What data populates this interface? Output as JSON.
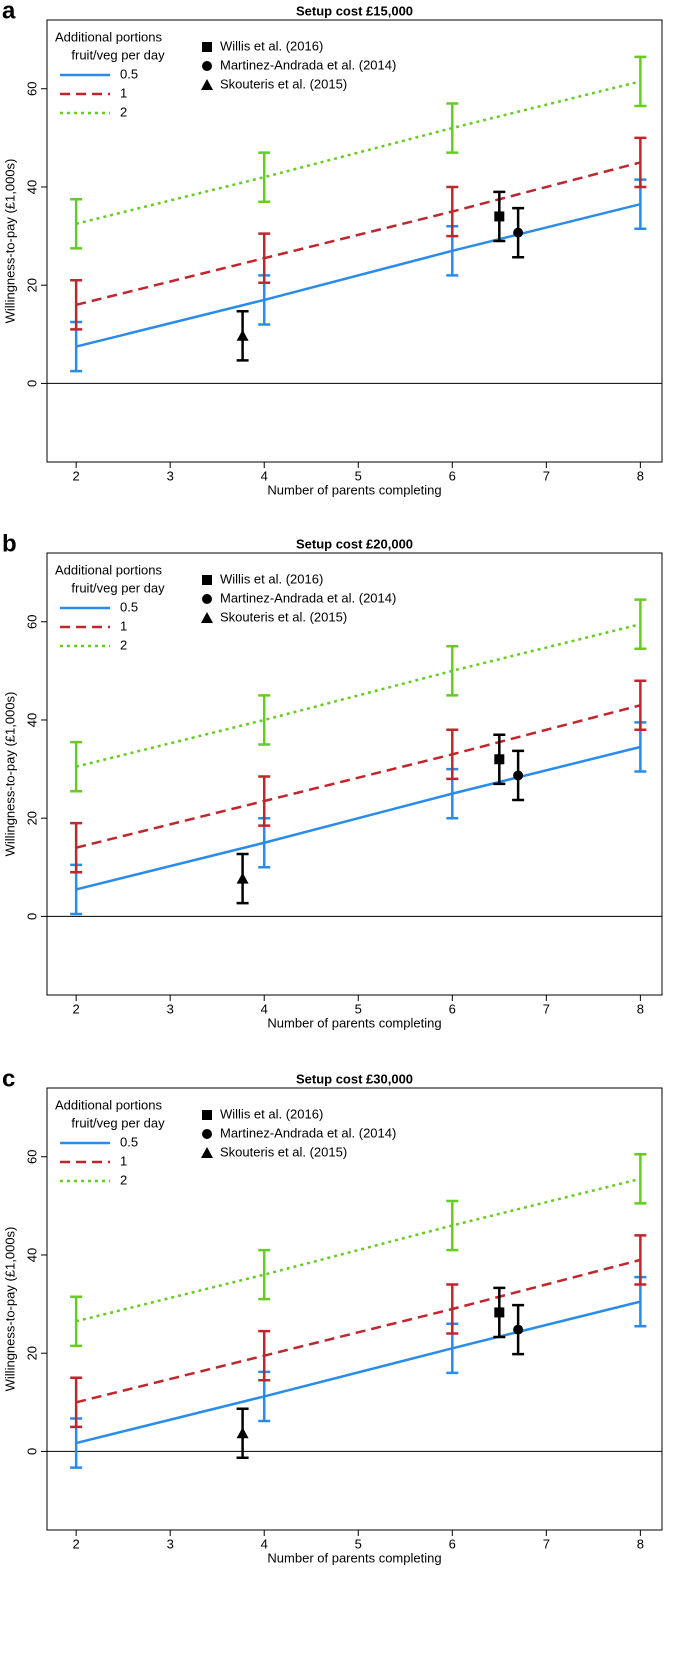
{
  "chart_data": [
    {
      "type": "line",
      "panel_label": "a",
      "title": "Setup cost £15,000",
      "x_label": "Number of parents completing",
      "y_label": "Willingness-to-pay (£1,000s)",
      "legend_title": [
        "Additional portions",
        "fruit/veg per day"
      ],
      "x": [
        2,
        4,
        6,
        8
      ],
      "series": [
        {
          "name": "0.5",
          "color": "#2a8cea",
          "dash": "none",
          "values": [
            7.5,
            17,
            27,
            36.5
          ],
          "errors": [
            5,
            5,
            5,
            5
          ]
        },
        {
          "name": "1",
          "color": "#c0262d",
          "dash": "10,6",
          "values": [
            16,
            25.5,
            35,
            45
          ],
          "errors": [
            5,
            5,
            5,
            5
          ]
        },
        {
          "name": "2",
          "color": "#66cc22",
          "dash": "3,4",
          "values": [
            32.5,
            42,
            52,
            61.5
          ],
          "errors": [
            5,
            5,
            5,
            5
          ]
        }
      ],
      "points": [
        {
          "name": "Willis et al. (2016)",
          "marker": "square",
          "x": 6.5,
          "y": 34,
          "error": 5
        },
        {
          "name": "Martinez-Andrada et al. (2014)",
          "marker": "circle",
          "x": 6.7,
          "y": 30.7,
          "error": 5
        },
        {
          "name": "Skouteris et al. (2015)",
          "marker": "triangle",
          "x": 3.77,
          "y": 9.7,
          "error": 5
        }
      ],
      "hline": 0,
      "xlim": [
        1.69,
        8.23
      ],
      "ylim": [
        -16,
        74
      ],
      "xticks": [
        2,
        3,
        4,
        5,
        6,
        7,
        8
      ],
      "yticks": [
        0,
        20,
        40,
        60
      ]
    },
    {
      "type": "line",
      "panel_label": "b",
      "title": "Setup cost £20,000",
      "x_label": "Number of parents completing",
      "y_label": "Willingness-to-pay (£1,000s)",
      "legend_title": [
        "Additional portions",
        "fruit/veg per day"
      ],
      "x": [
        2,
        4,
        6,
        8
      ],
      "series": [
        {
          "name": "0.5",
          "color": "#2a8cea",
          "dash": "none",
          "values": [
            5.5,
            15,
            25,
            34.5
          ],
          "errors": [
            5,
            5,
            5,
            5
          ]
        },
        {
          "name": "1",
          "color": "#c0262d",
          "dash": "10,6",
          "values": [
            14,
            23.5,
            33,
            43
          ],
          "errors": [
            5,
            5,
            5,
            5
          ]
        },
        {
          "name": "2",
          "color": "#66cc22",
          "dash": "3,4",
          "values": [
            30.5,
            40,
            50,
            59.5
          ],
          "errors": [
            5,
            5,
            5,
            5
          ]
        }
      ],
      "points": [
        {
          "name": "Willis et al. (2016)",
          "marker": "square",
          "x": 6.5,
          "y": 32,
          "error": 5
        },
        {
          "name": "Martinez-Andrada et al. (2014)",
          "marker": "circle",
          "x": 6.7,
          "y": 28.7,
          "error": 5
        },
        {
          "name": "Skouteris et al. (2015)",
          "marker": "triangle",
          "x": 3.77,
          "y": 7.7,
          "error": 5
        }
      ],
      "hline": 0,
      "xlim": [
        1.69,
        8.23
      ],
      "ylim": [
        -16,
        74
      ],
      "xticks": [
        2,
        3,
        4,
        5,
        6,
        7,
        8
      ],
      "yticks": [
        0,
        20,
        40,
        60
      ]
    },
    {
      "type": "line",
      "panel_label": "c",
      "title": "Setup cost £30,000",
      "x_label": "Number of parents completing",
      "y_label": "Willingness-to-pay (£1,000s)",
      "legend_title": [
        "Additional portions",
        "fruit/veg per day"
      ],
      "x": [
        2,
        4,
        6,
        8
      ],
      "series": [
        {
          "name": "0.5",
          "color": "#2a8cea",
          "dash": "none",
          "values": [
            1.7,
            11.2,
            21,
            30.5
          ],
          "errors": [
            5,
            5,
            5,
            5
          ]
        },
        {
          "name": "1",
          "color": "#c0262d",
          "dash": "10,6",
          "values": [
            10,
            19.5,
            29,
            39
          ],
          "errors": [
            5,
            5,
            5,
            5
          ]
        },
        {
          "name": "2",
          "color": "#66cc22",
          "dash": "3,4",
          "values": [
            26.5,
            36,
            46,
            55.5
          ],
          "errors": [
            5,
            5,
            5,
            5
          ]
        }
      ],
      "points": [
        {
          "name": "Willis et al. (2016)",
          "marker": "square",
          "x": 6.5,
          "y": 28.3,
          "error": 5
        },
        {
          "name": "Martinez-Andrada et al. (2014)",
          "marker": "circle",
          "x": 6.7,
          "y": 24.8,
          "error": 5
        },
        {
          "name": "Skouteris et al. (2015)",
          "marker": "triangle",
          "x": 3.77,
          "y": 3.7,
          "error": 5
        }
      ],
      "hline": 0,
      "xlim": [
        1.69,
        8.23
      ],
      "ylim": [
        -16,
        74
      ],
      "xticks": [
        2,
        3,
        4,
        5,
        6,
        7,
        8
      ],
      "yticks": [
        0,
        20,
        40,
        60
      ]
    }
  ]
}
